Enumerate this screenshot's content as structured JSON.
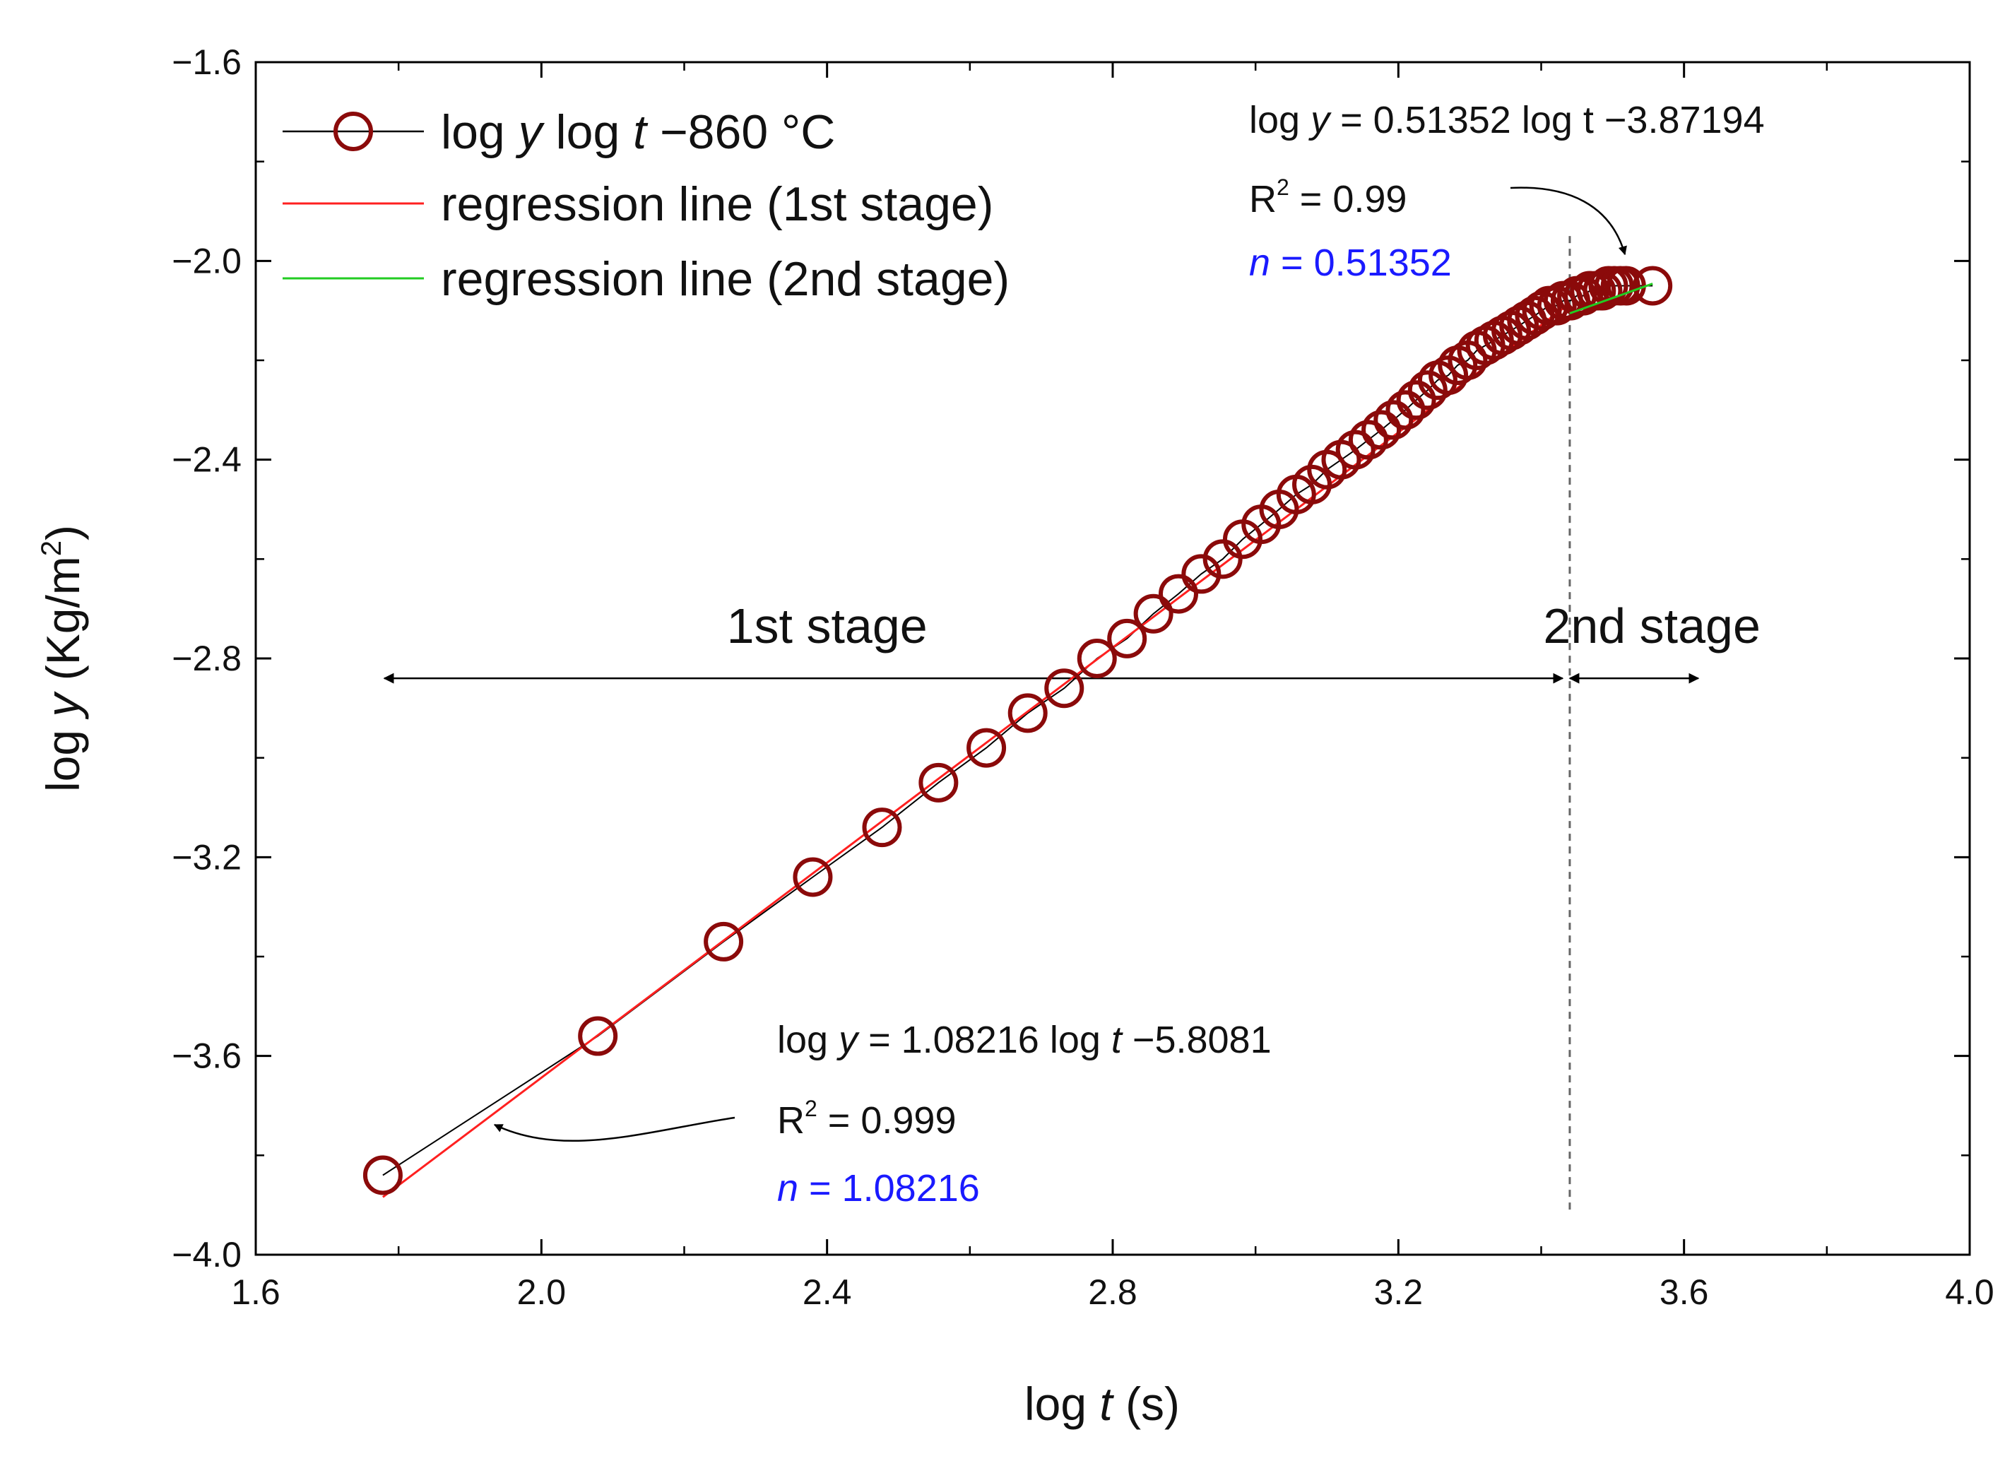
{
  "chart_data": {
    "type": "scatter",
    "xlabel": {
      "prefix": "log ",
      "var": "t",
      "suffix": " (s)"
    },
    "ylabel": {
      "prefix": "log ",
      "var": "y",
      "unit_open": " (Kg/m",
      "unit_sup": "2",
      "unit_close": ")"
    },
    "xlim": [
      1.6,
      4.0
    ],
    "ylim": [
      -4.0,
      -1.6
    ],
    "x_ticks": [
      1.6,
      2.0,
      2.4,
      2.8,
      3.2,
      3.6,
      4.0
    ],
    "x_tick_labels": [
      "1.6",
      "2.0",
      "2.4",
      "2.8",
      "3.2",
      "3.6",
      "4.0"
    ],
    "y_ticks": [
      -1.6,
      -2.0,
      -2.4,
      -2.8,
      -3.2,
      -3.6,
      -4.0
    ],
    "y_tick_labels": [
      "−1.6",
      "−2.0",
      "−2.4",
      "−2.8",
      "−3.2",
      "−3.6",
      "−4.0"
    ],
    "x_minor_step": 0.2,
    "y_minor_step": 0.2,
    "series": [
      {
        "name": "log y log t −860 °C",
        "kind": "markers+line",
        "marker_color": "#8b0a0a",
        "line_color": "#000000",
        "x": [
          1.778,
          2.079,
          2.255,
          2.38,
          2.477,
          2.556,
          2.623,
          2.681,
          2.732,
          2.778,
          2.82,
          2.857,
          2.892,
          2.924,
          2.954,
          2.982,
          3.008,
          3.033,
          3.057,
          3.079,
          3.1,
          3.12,
          3.14,
          3.158,
          3.176,
          3.193,
          3.21,
          3.225,
          3.241,
          3.255,
          3.27,
          3.283,
          3.297,
          3.31,
          3.322,
          3.334,
          3.346,
          3.358,
          3.369,
          3.38,
          3.391,
          3.401,
          3.411,
          3.422,
          3.431,
          3.441,
          3.45,
          3.459,
          3.468,
          3.477,
          3.486,
          3.494,
          3.502,
          3.511,
          3.519,
          3.556
        ],
        "y": [
          -3.84,
          -3.56,
          -3.37,
          -3.24,
          -3.14,
          -3.05,
          -2.98,
          -2.91,
          -2.86,
          -2.8,
          -2.76,
          -2.71,
          -2.67,
          -2.63,
          -2.6,
          -2.56,
          -2.53,
          -2.5,
          -2.47,
          -2.45,
          -2.42,
          -2.4,
          -2.38,
          -2.36,
          -2.34,
          -2.32,
          -2.3,
          -2.28,
          -2.26,
          -2.24,
          -2.23,
          -2.21,
          -2.2,
          -2.18,
          -2.17,
          -2.16,
          -2.15,
          -2.14,
          -2.13,
          -2.12,
          -2.11,
          -2.1,
          -2.09,
          -2.09,
          -2.08,
          -2.08,
          -2.07,
          -2.07,
          -2.06,
          -2.06,
          -2.06,
          -2.05,
          -2.05,
          -2.05,
          -2.05,
          -2.05
        ]
      },
      {
        "name": "regression line (1st stage)",
        "kind": "line",
        "color": "#ff2020",
        "slope": 1.08216,
        "intercept": -5.8081,
        "x_range": [
          1.778,
          3.43
        ]
      },
      {
        "name": "regression line (2nd stage)",
        "kind": "line",
        "color": "#22cc22",
        "slope": 0.51352,
        "intercept": -3.87194,
        "x_range": [
          3.44,
          3.556
        ]
      }
    ],
    "legend_labels": {
      "s1_pre": "log ",
      "s1_v1": "y",
      "s1_mid": " log ",
      "s1_v2": "t",
      "s1_post": " −860 °C",
      "s2": "regression line (1st stage)",
      "s3": "regression line (2nd stage)"
    },
    "legend_position": "top-left",
    "divider_x": 3.44,
    "stage_labels": {
      "first": "1st stage",
      "second": "2nd stage",
      "first_range": [
        1.78,
        3.43
      ],
      "second_range": [
        3.44,
        3.62
      ],
      "arrow_y": -2.84
    },
    "annotations": {
      "stage2": {
        "eq_pre": "log ",
        "eq_var": "y",
        "eq_post": " = 0.51352 log t −3.87194",
        "r2_pre": "R",
        "r2_sup": "2",
        "r2_post": " = 0.99",
        "n_var": "n",
        "n_post": " = 0.51352",
        "n_color": "#1a1aff"
      },
      "stage1": {
        "eq_pre": "log ",
        "eq_var": "y",
        "eq_mid": " = 1.08216 log ",
        "eq_var2": "t",
        "eq_post": " −5.8081",
        "r2_pre": "R",
        "r2_sup": "2",
        "r2_post": " = 0.999",
        "n_var": "n",
        "n_post": " = 1.08216",
        "n_color": "#1a1aff"
      }
    }
  }
}
